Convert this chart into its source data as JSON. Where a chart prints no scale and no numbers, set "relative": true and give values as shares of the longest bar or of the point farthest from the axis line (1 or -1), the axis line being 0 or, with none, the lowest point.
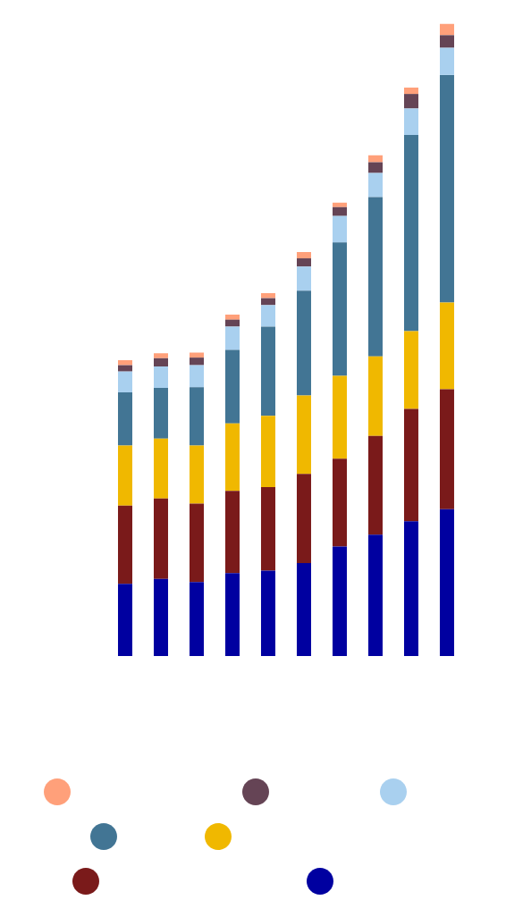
{
  "chart_data": {
    "type": "bar",
    "relative": true,
    "stacked": true,
    "categories": [
      null,
      null,
      null,
      null,
      null,
      null,
      null,
      null,
      null,
      null
    ],
    "series": [
      {
        "color": "#0000a0",
        "values": [
          0.114,
          0.122,
          0.117,
          0.131,
          0.135,
          0.147,
          0.173,
          0.192,
          0.213,
          0.232
        ]
      },
      {
        "color": "#7a1a1a",
        "values": [
          0.124,
          0.127,
          0.124,
          0.13,
          0.132,
          0.141,
          0.139,
          0.156,
          0.178,
          0.19
        ]
      },
      {
        "color": "#f0b800",
        "values": [
          0.095,
          0.095,
          0.092,
          0.107,
          0.113,
          0.124,
          0.131,
          0.126,
          0.123,
          0.137
        ]
      },
      {
        "color": "#427594",
        "values": [
          0.084,
          0.08,
          0.092,
          0.116,
          0.141,
          0.166,
          0.211,
          0.252,
          0.31,
          0.36
        ]
      },
      {
        "color": "#a9d0ef",
        "values": [
          0.033,
          0.034,
          0.035,
          0.037,
          0.034,
          0.038,
          0.042,
          0.038,
          0.042,
          0.043
        ]
      },
      {
        "color": "#654455",
        "values": [
          0.01,
          0.013,
          0.012,
          0.011,
          0.011,
          0.013,
          0.014,
          0.017,
          0.023,
          0.02
        ]
      },
      {
        "color": "#ffa07a",
        "values": [
          0.008,
          0.008,
          0.008,
          0.008,
          0.008,
          0.01,
          0.007,
          0.011,
          0.01,
          0.018
        ]
      }
    ]
  }
}
